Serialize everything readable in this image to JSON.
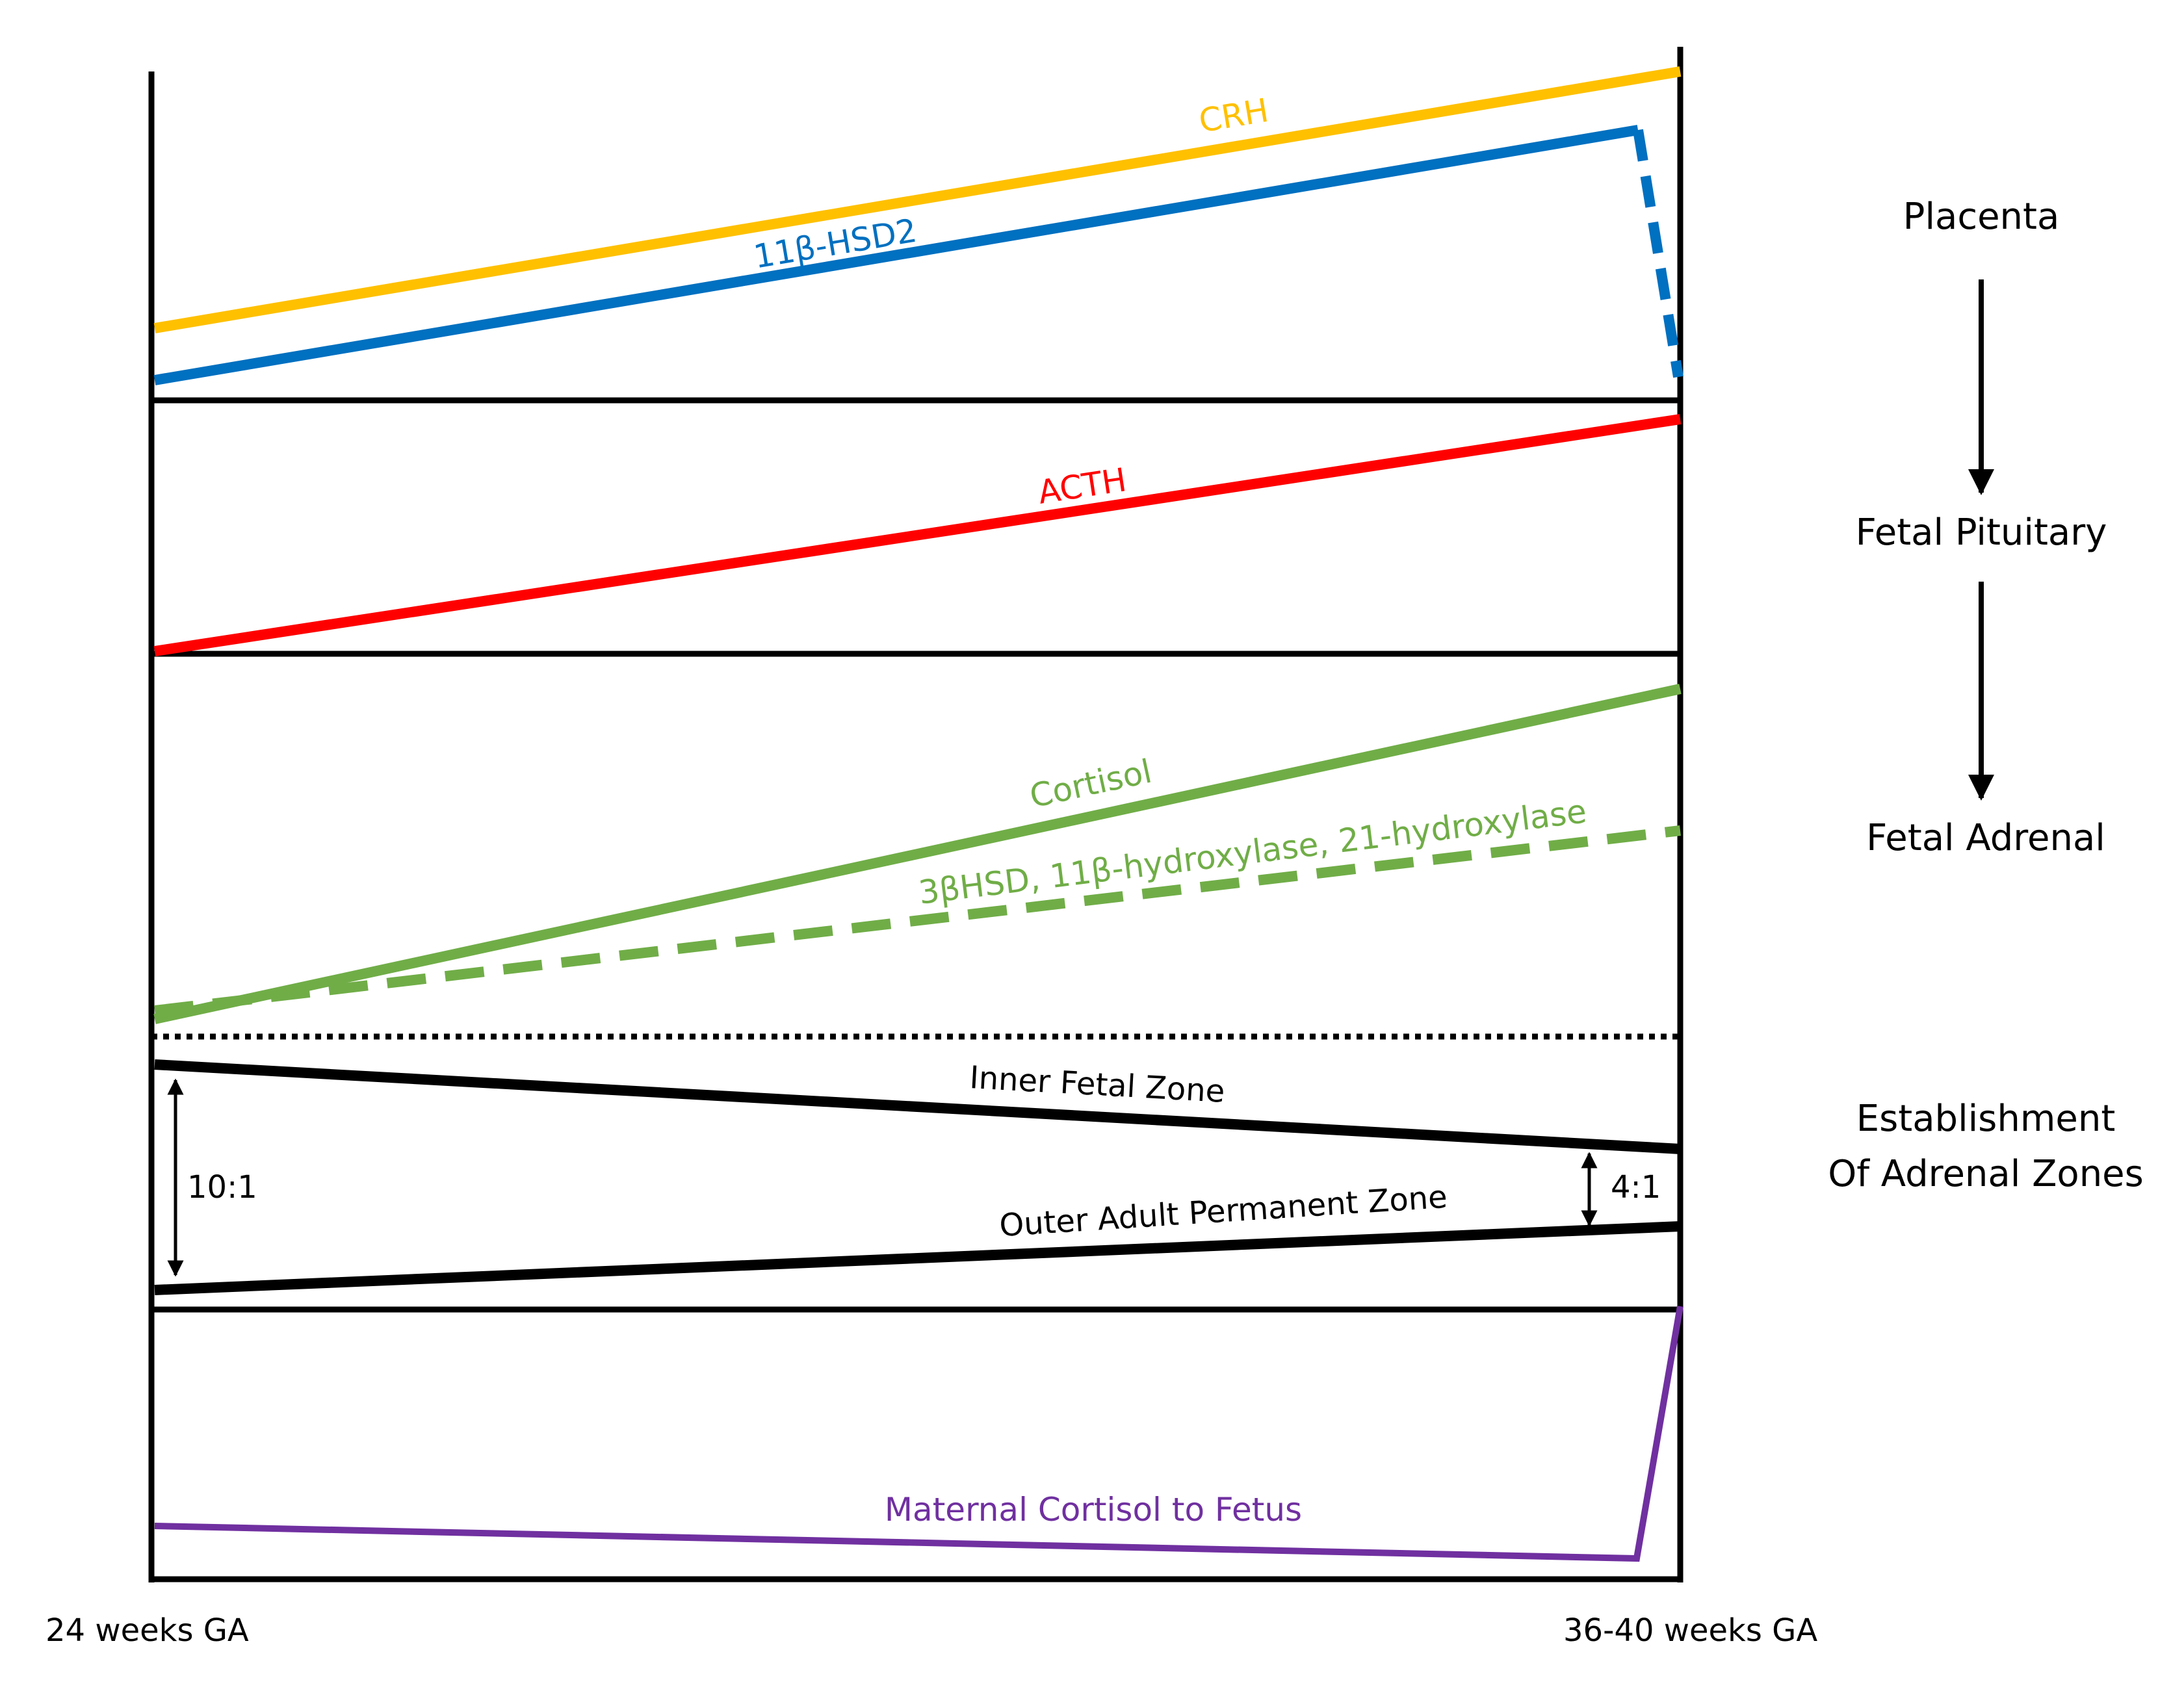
{
  "colors": {
    "crh": "#FFC000",
    "hsd2": "#0070C0",
    "acth": "#FF0000",
    "cortisol": "#70AD47",
    "zones": "#000000",
    "maternal": "#7030A0"
  },
  "panels": {
    "placenta": {
      "crh_label": "CRH",
      "hsd2_label": "11β-HSD2"
    },
    "pituitary": {
      "acth_label": "ACTH"
    },
    "adrenal": {
      "cortisol_label": "Cortisol",
      "enzymes_label": "3βHSD, 11β-hydroxylase, 21-hydroxylase"
    },
    "zones": {
      "inner_label": "Inner Fetal Zone",
      "outer_label": "Outer Adult Permanent Zone",
      "ratio_start": "10:1",
      "ratio_end": "4:1"
    },
    "maternal": {
      "label": "Maternal Cortisol to Fetus"
    }
  },
  "axis": {
    "start_label": "24 weeks GA",
    "end_label": "36-40 weeks GA"
  },
  "cascade": {
    "placenta": "Placenta",
    "pituitary": "Fetal Pituitary",
    "adrenal": "Fetal Adrenal",
    "zones_line1": "Establishment",
    "zones_line2": "Of Adrenal Zones"
  }
}
